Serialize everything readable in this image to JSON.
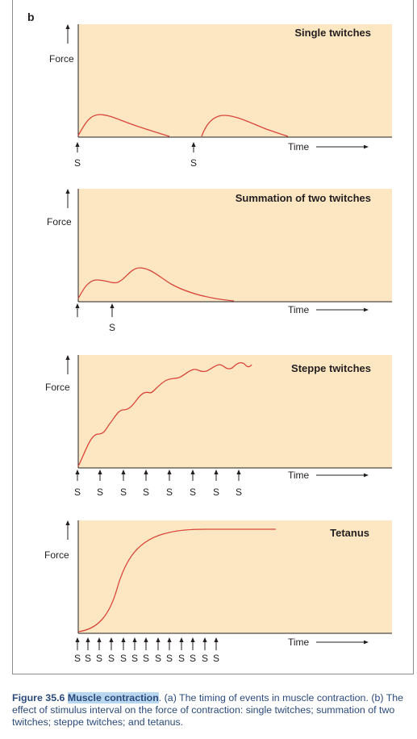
{
  "figure": {
    "panel_letter": "b",
    "panels": [
      {
        "title": "Single twitches",
        "y_axis_label": "Force",
        "x_axis_label": "Time",
        "stimulus_label": "S",
        "stimuli": [
          {
            "time": 0,
            "labeled": true
          },
          {
            "time": 5,
            "labeled": true
          }
        ]
      },
      {
        "title": "Summation of two twitches",
        "y_axis_label": "Force",
        "x_axis_label": "Time",
        "stimulus_label": "S",
        "stimuli": [
          {
            "time": 0,
            "labeled": false
          },
          {
            "time": 1.5,
            "labeled": true
          }
        ]
      },
      {
        "title": "Steppe twitches",
        "y_axis_label": "Force",
        "x_axis_label": "Time",
        "stimulus_label": "S",
        "stimuli": [
          {
            "time": 0,
            "labeled": true
          },
          {
            "time": 1,
            "labeled": true
          },
          {
            "time": 2,
            "labeled": true
          },
          {
            "time": 3,
            "labeled": true
          },
          {
            "time": 4,
            "labeled": true
          },
          {
            "time": 5,
            "labeled": true
          },
          {
            "time": 6,
            "labeled": true
          },
          {
            "time": 7,
            "labeled": true
          }
        ]
      },
      {
        "title": "Tetanus",
        "y_axis_label": "Force",
        "x_axis_label": "Time",
        "stimulus_label": "S",
        "stimuli": [
          {
            "time": 0,
            "labeled": true
          },
          {
            "time": 0.5,
            "labeled": true
          },
          {
            "time": 1,
            "labeled": true
          },
          {
            "time": 1.5,
            "labeled": true
          },
          {
            "time": 2,
            "labeled": true
          },
          {
            "time": 2.5,
            "labeled": true
          },
          {
            "time": 3,
            "labeled": true
          },
          {
            "time": 3.5,
            "labeled": true
          },
          {
            "time": 4,
            "labeled": true
          },
          {
            "time": 4.5,
            "labeled": true
          },
          {
            "time": 5,
            "labeled": true
          },
          {
            "time": 5.5,
            "labeled": true
          },
          {
            "time": 6,
            "labeled": true
          }
        ]
      }
    ]
  },
  "caption": {
    "label": "Figure 35.6",
    "title": "Muscle contraction",
    "text": ". (a) The timing of events in muscle contraction. (b) The effect of stimulus interval on the force of contraction: single twitches; summation of two twitches; steppe twitches; and tetanus."
  },
  "colors": {
    "panel_fill": "#fde7c2",
    "curve": "#d8453b",
    "caption_text": "#2b4a7c",
    "caption_highlight": "#b9d6ef"
  }
}
